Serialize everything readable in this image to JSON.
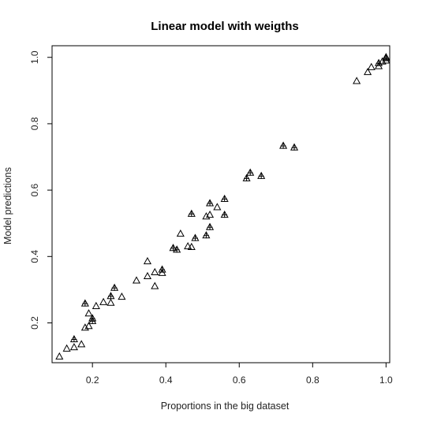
{
  "chart_data": {
    "type": "scatter",
    "title": "Linear model with weigths",
    "xlabel": "Proportions in the big dataset",
    "ylabel": "Model predictions",
    "xlim": [
      0.09,
      1.01
    ],
    "ylim": [
      0.08,
      1.035
    ],
    "xticks": [
      "0.2",
      "0.4",
      "0.6",
      "0.8",
      "1.0"
    ],
    "yticks": [
      "0.2",
      "0.4",
      "0.6",
      "0.8",
      "1.0"
    ],
    "grid": false,
    "legend": "none",
    "series": [
      {
        "marker": "triangle",
        "points": [
          [
            0.11,
            0.098
          ],
          [
            0.13,
            0.122
          ],
          [
            0.15,
            0.126
          ],
          [
            0.15,
            0.15
          ],
          [
            0.17,
            0.135
          ],
          [
            0.18,
            0.185
          ],
          [
            0.18,
            0.258
          ],
          [
            0.19,
            0.19
          ],
          [
            0.19,
            0.228
          ],
          [
            0.2,
            0.205
          ],
          [
            0.2,
            0.213
          ],
          [
            0.21,
            0.25
          ],
          [
            0.23,
            0.262
          ],
          [
            0.25,
            0.26
          ],
          [
            0.25,
            0.28
          ],
          [
            0.26,
            0.305
          ],
          [
            0.28,
            0.278
          ],
          [
            0.32,
            0.327
          ],
          [
            0.35,
            0.34
          ],
          [
            0.35,
            0.385
          ],
          [
            0.37,
            0.31
          ],
          [
            0.37,
            0.352
          ],
          [
            0.39,
            0.35
          ],
          [
            0.39,
            0.36
          ],
          [
            0.42,
            0.425
          ],
          [
            0.43,
            0.42
          ],
          [
            0.44,
            0.468
          ],
          [
            0.46,
            0.43
          ],
          [
            0.47,
            0.428
          ],
          [
            0.47,
            0.528
          ],
          [
            0.48,
            0.455
          ],
          [
            0.51,
            0.463
          ],
          [
            0.51,
            0.52
          ],
          [
            0.52,
            0.488
          ],
          [
            0.52,
            0.525
          ],
          [
            0.52,
            0.56
          ],
          [
            0.54,
            0.548
          ],
          [
            0.56,
            0.525
          ],
          [
            0.56,
            0.573
          ],
          [
            0.62,
            0.635
          ],
          [
            0.63,
            0.652
          ],
          [
            0.66,
            0.642
          ],
          [
            0.72,
            0.733
          ],
          [
            0.75,
            0.728
          ],
          [
            0.92,
            0.928
          ],
          [
            0.95,
            0.955
          ],
          [
            0.96,
            0.97
          ],
          [
            0.98,
            0.973
          ],
          [
            0.98,
            0.982
          ],
          [
            0.99,
            0.987
          ],
          [
            1.0,
            0.997
          ],
          [
            1.0,
            1.0
          ],
          [
            1.0,
            0.99
          ]
        ]
      },
      {
        "marker": "plus",
        "points": [
          [
            0.15,
            0.15
          ],
          [
            0.18,
            0.258
          ],
          [
            0.2,
            0.205
          ],
          [
            0.2,
            0.213
          ],
          [
            0.25,
            0.28
          ],
          [
            0.26,
            0.305
          ],
          [
            0.39,
            0.36
          ],
          [
            0.42,
            0.425
          ],
          [
            0.43,
            0.42
          ],
          [
            0.47,
            0.528
          ],
          [
            0.48,
            0.455
          ],
          [
            0.51,
            0.463
          ],
          [
            0.52,
            0.488
          ],
          [
            0.52,
            0.56
          ],
          [
            0.56,
            0.525
          ],
          [
            0.56,
            0.573
          ],
          [
            0.62,
            0.635
          ],
          [
            0.63,
            0.652
          ],
          [
            0.66,
            0.642
          ],
          [
            0.72,
            0.733
          ],
          [
            0.75,
            0.728
          ],
          [
            0.98,
            0.982
          ],
          [
            1.0,
            0.997
          ]
        ]
      }
    ]
  }
}
